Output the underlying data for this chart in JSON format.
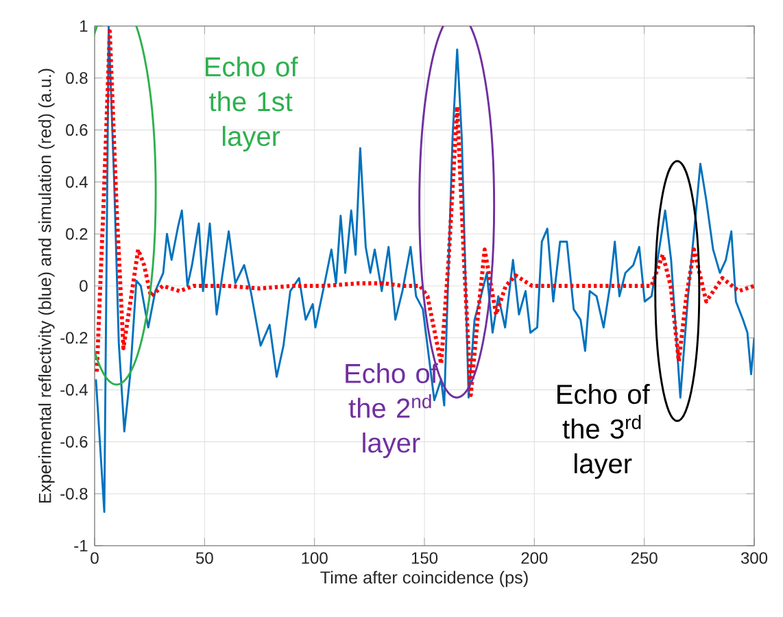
{
  "chart_data": {
    "type": "line",
    "xlabel": "Time after coincidence (ps)",
    "ylabel": "Experimental reflectivity (blue) and simulation (red) (a.u.)",
    "xlim": [
      0,
      300
    ],
    "ylim": [
      -1,
      1
    ],
    "xticks": [
      0,
      50,
      100,
      150,
      200,
      250,
      300
    ],
    "yticks": [
      -1,
      -0.8,
      -0.6,
      -0.4,
      -0.2,
      0,
      0.2,
      0.4,
      0.6,
      0.8,
      1
    ],
    "grid": true,
    "annotations": [
      "Echo of the 1st layer",
      "Echo of the 2$^{nd}$ layer",
      "Echo of the 3$^{rd}$ layer"
    ],
    "series": [
      {
        "color": "#0072bd",
        "line_style": "solid",
        "x": [
          0.6,
          4.4,
          6.4,
          8.9,
          11,
          13.5,
          16.2,
          19,
          21,
          24.4,
          27.6,
          31.2,
          32.9,
          35,
          38,
          39.7,
          42.2,
          44.3,
          47.4,
          49.3,
          52.4,
          55.5,
          61,
          64,
          68,
          71,
          75.5,
          79.6,
          82.8,
          85.9,
          89,
          93,
          96,
          99.2,
          100.4,
          104.6,
          107.7,
          109.8,
          111.9,
          114,
          116.7,
          118.7,
          120.8,
          123.3,
          125.4,
          127.4,
          130.6,
          133.7,
          136.8,
          140,
          143.7,
          146.2,
          149.3,
          154.5,
          157.6,
          159,
          162.8,
          164.9,
          167,
          170.1,
          172.8,
          175.7,
          178.4,
          181,
          183.6,
          186.7,
          190.3,
          193,
          196,
          198.2,
          201.3,
          203.4,
          205.9,
          208.6,
          211.7,
          214.8,
          217.9,
          221,
          223.1,
          225.2,
          228.3,
          231.5,
          234.6,
          236.6,
          238.7,
          241.4,
          245,
          247.7,
          250.2,
          253.3,
          256.4,
          259.5,
          262.2,
          266.4,
          269.9,
          273,
          275.5,
          278.2,
          281.3,
          284.4,
          287.1,
          289.6,
          291.7,
          294.9,
          296.9,
          298.6,
          300
        ],
        "values": [
          -0.36,
          -0.87,
          1.0,
          0.4,
          -0.22,
          -0.56,
          -0.34,
          0.02,
          0,
          -0.16,
          -0.02,
          0.05,
          0.2,
          0.1,
          0.23,
          0.29,
          0,
          0.08,
          0.24,
          -0.02,
          0.24,
          -0.11,
          0.21,
          0.01,
          0.08,
          -0.02,
          -0.23,
          -0.15,
          -0.35,
          -0.23,
          -0.02,
          0.03,
          -0.13,
          -0.07,
          -0.16,
          0.01,
          0.14,
          0.01,
          0.27,
          0.05,
          0.29,
          0.12,
          0.53,
          0.15,
          0.05,
          0.14,
          -0.02,
          0.15,
          -0.13,
          -0.02,
          0.15,
          -0.04,
          -0.09,
          -0.44,
          -0.36,
          -0.46,
          0.57,
          0.91,
          0.57,
          -0.43,
          -0.13,
          -0.04,
          0.05,
          -0.18,
          -0.04,
          -0.16,
          0.1,
          -0.11,
          -0.02,
          -0.18,
          -0.16,
          0.17,
          0.22,
          -0.06,
          0.17,
          0.17,
          -0.09,
          -0.13,
          -0.25,
          -0.02,
          -0.04,
          -0.16,
          0.01,
          0.17,
          -0.04,
          0.05,
          0.08,
          0.15,
          -0.06,
          -0.04,
          0.12,
          0.29,
          0.1,
          -0.43,
          -0.04,
          0.24,
          0.47,
          0.33,
          0.14,
          0.05,
          0.1,
          0.21,
          -0.06,
          -0.13,
          -0.18,
          -0.34,
          -0.2
        ]
      },
      {
        "color": "#ff0000",
        "line_style": "dotted",
        "x": [
          1,
          4,
          6.9,
          10,
          13.1,
          16.5,
          19.8,
          22.5,
          25.6,
          31,
          38.6,
          45,
          60,
          75,
          90,
          105,
          120,
          131.6,
          140,
          148,
          151.4,
          157.6,
          161,
          164.9,
          168,
          171.1,
          174.5,
          177.4,
          182.6,
          187,
          191.5,
          199,
          208,
          221,
          236,
          253.3,
          258.4,
          262,
          265.7,
          269,
          272.6,
          278.2,
          285.5,
          293,
          300
        ],
        "values": [
          -0.33,
          0.3,
          0.98,
          0.3,
          -0.24,
          -0.05,
          0.14,
          0.08,
          -0.04,
          0.0,
          -0.02,
          0.0,
          0.0,
          -0.01,
          0.0,
          0.0,
          0.01,
          0.01,
          0.0,
          0.0,
          -0.04,
          -0.3,
          0.1,
          0.69,
          0.1,
          -0.42,
          -0.1,
          0.14,
          -0.11,
          0.0,
          0.04,
          0.0,
          0.0,
          0.0,
          0.0,
          0.0,
          0.12,
          0.0,
          -0.29,
          -0.05,
          0.14,
          -0.06,
          0.03,
          -0.02,
          0.0
        ]
      }
    ]
  }
}
